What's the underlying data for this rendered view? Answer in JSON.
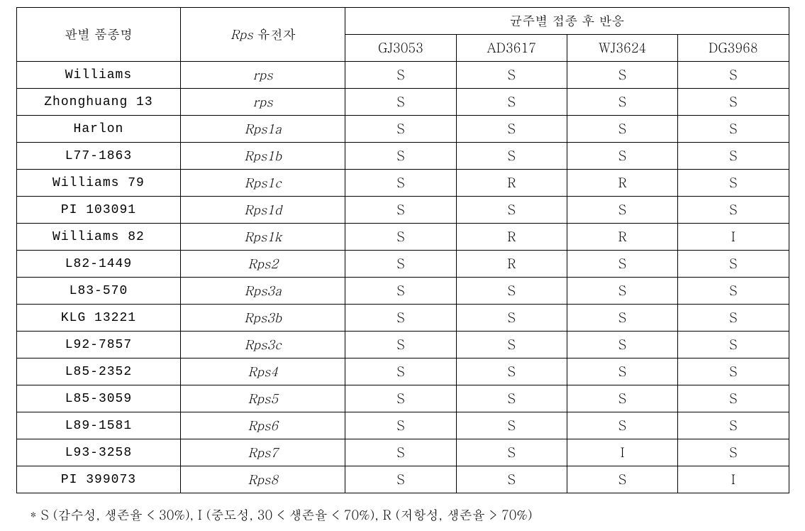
{
  "table": {
    "header": {
      "variety": "판별 품종명",
      "gene": "Rps 유전자",
      "reaction_group": "균주별 접종 후 반응",
      "strains": [
        "GJ3053",
        "AD3617",
        "WJ3624",
        "DG3968"
      ]
    },
    "rows": [
      {
        "variety": "Williams",
        "gene": "rps",
        "gene_italic": true,
        "values": [
          "S",
          "S",
          "S",
          "S"
        ]
      },
      {
        "variety": "Zhonghuang 13",
        "gene": "rps",
        "gene_italic": true,
        "values": [
          "S",
          "S",
          "S",
          "S"
        ]
      },
      {
        "variety": "Harlon",
        "gene": "Rps1a",
        "gene_italic": true,
        "values": [
          "S",
          "S",
          "S",
          "S"
        ]
      },
      {
        "variety": "L77-1863",
        "gene": "Rps1b",
        "gene_italic": true,
        "values": [
          "S",
          "S",
          "S",
          "S"
        ]
      },
      {
        "variety": "Williams 79",
        "gene": "Rps1c",
        "gene_italic": true,
        "values": [
          "S",
          "R",
          "R",
          "S"
        ]
      },
      {
        "variety": "PI 103091",
        "gene": "Rps1d",
        "gene_italic": true,
        "values": [
          "S",
          "S",
          "S",
          "S"
        ]
      },
      {
        "variety": "Williams 82",
        "gene": "Rps1k",
        "gene_italic": true,
        "values": [
          "S",
          "R",
          "R",
          "I"
        ]
      },
      {
        "variety": "L82-1449",
        "gene": "Rps2",
        "gene_italic": true,
        "values": [
          "S",
          "R",
          "S",
          "S"
        ]
      },
      {
        "variety": "L83-570",
        "gene": "Rps3a",
        "gene_italic": true,
        "values": [
          "S",
          "S",
          "S",
          "S"
        ]
      },
      {
        "variety": "KLG 13221",
        "gene": "Rps3b",
        "gene_italic": true,
        "values": [
          "S",
          "S",
          "S",
          "S"
        ]
      },
      {
        "variety": "L92-7857",
        "gene": "Rps3c",
        "gene_italic": true,
        "values": [
          "S",
          "S",
          "S",
          "S"
        ]
      },
      {
        "variety": "L85-2352",
        "gene": "Rps4",
        "gene_italic": true,
        "values": [
          "S",
          "S",
          "S",
          "S"
        ]
      },
      {
        "variety": "L85-3059",
        "gene": "Rps5",
        "gene_italic": true,
        "values": [
          "S",
          "S",
          "S",
          "S"
        ]
      },
      {
        "variety": "L89-1581",
        "gene": "Rps6",
        "gene_italic": true,
        "values": [
          "S",
          "S",
          "S",
          "S"
        ]
      },
      {
        "variety": "L93-3258",
        "gene": "Rps7",
        "gene_italic": true,
        "values": [
          "S",
          "S",
          "I",
          "S"
        ]
      },
      {
        "variety": "PI 399073",
        "gene": "Rps8",
        "gene_italic": true,
        "values": [
          "S",
          "S",
          "S",
          "I"
        ]
      }
    ]
  },
  "footnote": "* S (감수성, 생존율 < 30%), I (중도성, 30 < 생존율 < 70%), R (저항성, 생존율 > 70%)",
  "style": {
    "border_color": "#000000",
    "background_color": "#ffffff",
    "font_size_cell": 18,
    "font_size_footnote": 18,
    "col_widths": {
      "variety": 230,
      "gene": 230,
      "strain": 155
    }
  }
}
